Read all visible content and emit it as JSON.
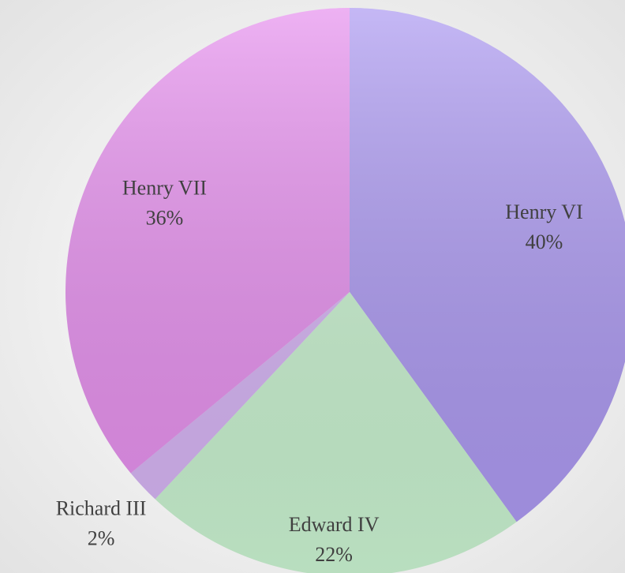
{
  "chart_data": {
    "type": "pie",
    "categories": [
      "Henry VI",
      "Edward IV",
      "Richard III",
      "Henry VII"
    ],
    "values": [
      40,
      22,
      2,
      36
    ],
    "value_labels": [
      "40%",
      "22%",
      "2%",
      "36%"
    ],
    "colors": [
      "#ac99f1",
      "#c9f2d0",
      "#d6b4f4",
      "#e690ee"
    ]
  }
}
